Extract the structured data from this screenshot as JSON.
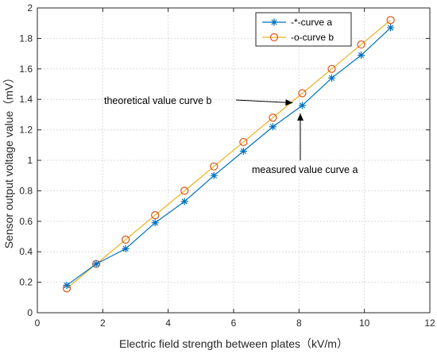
{
  "chart_data": {
    "type": "line",
    "xlabel": "Electric field strength between plates（kV/m）",
    "ylabel": "Sensor output voltage value（mV）",
    "xlim": [
      0,
      12
    ],
    "ylim": [
      0,
      2
    ],
    "xticks": [
      0,
      2,
      4,
      6,
      8,
      10,
      12
    ],
    "yticks": [
      0,
      0.2,
      0.4,
      0.6,
      0.8,
      1,
      1.2,
      1.4,
      1.6,
      1.8,
      2
    ],
    "grid": true,
    "legend_position": "top-right",
    "series": [
      {
        "name": "-*-curve a",
        "marker": "asterisk",
        "color": "#0072BD",
        "x": [
          0.9,
          1.8,
          2.7,
          3.6,
          4.5,
          5.4,
          6.3,
          7.2,
          8.1,
          9.0,
          9.9,
          10.8
        ],
        "y": [
          0.18,
          0.32,
          0.42,
          0.59,
          0.73,
          0.9,
          1.06,
          1.22,
          1.36,
          1.54,
          1.69,
          1.87
        ]
      },
      {
        "name": "-o-curve b",
        "marker": "circle",
        "color": "#EDB120",
        "marker_color": "#D95319",
        "x": [
          0.9,
          1.8,
          2.7,
          3.6,
          4.5,
          5.4,
          6.3,
          7.2,
          8.1,
          9.0,
          9.9,
          10.8
        ],
        "y": [
          0.16,
          0.32,
          0.48,
          0.64,
          0.8,
          0.96,
          1.12,
          1.28,
          1.44,
          1.6,
          1.76,
          1.92
        ]
      }
    ],
    "annotations": [
      {
        "text": "theoretical value curve b",
        "arrow_to": [
          8.1,
          1.44
        ]
      },
      {
        "text": "measured value curve a",
        "arrow_to": [
          8.1,
          1.36
        ]
      }
    ]
  }
}
